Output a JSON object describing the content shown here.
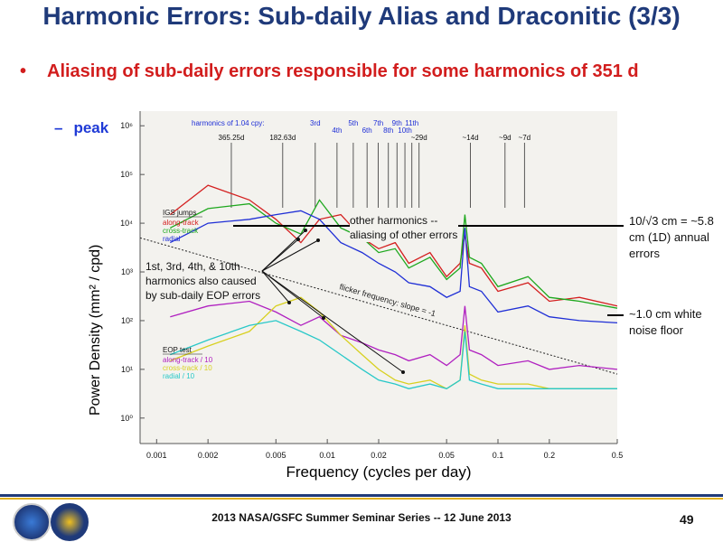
{
  "slide": {
    "title": "Harmonic Errors: Sub-daily Alias and Draconitic (3/3)",
    "bullet": "Aliasing of sub-daily errors responsible for some harmonics of 351 d",
    "sub_bullet": "peak",
    "footer": "2013 NASA/GSFC Summer Seminar Series -- 12 June 2013",
    "page_number": "49",
    "logos": [
      "noaa-logo",
      "ngs-logo"
    ]
  },
  "annotations": {
    "other_harmonics": "other harmonics -- aliasing of other errors",
    "eop_harmonics": "1st, 3rd, 4th, & 10th harmonics also caused by sub-daily EOP errors",
    "annual_errors": "10/√3 cm = ~5.8 cm (1D) annual errors",
    "white_noise": "~1.0 cm white noise floor",
    "flicker": "flicker frequency: slope = -1"
  },
  "chart_data": {
    "type": "line",
    "xlabel": "Frequency (cycles per day)",
    "ylabel": "Power Density  (mm² / cpd)",
    "xscale": "log",
    "yscale": "log",
    "xlim": [
      0.0008,
      0.5
    ],
    "ylim": [
      0.3,
      2000000
    ],
    "xticks": [
      0.001,
      0.002,
      0.005,
      0.01,
      0.02,
      0.05,
      0.1,
      0.2,
      0.5
    ],
    "xticklabels": [
      "0.001",
      "0.002",
      "0.005",
      "0.01",
      "0.02",
      "0.05",
      "0.1",
      "0.2",
      "0.5"
    ],
    "yticks": [
      1,
      10,
      100,
      1000,
      10000,
      100000,
      1000000
    ],
    "yticklabels": [
      "10⁰",
      "10¹",
      "10²",
      "10³",
      "10⁴",
      "10⁵",
      "10⁶"
    ],
    "harmonic_header": "harmonics of 1.04 cpy:",
    "harmonic_labels": [
      {
        "label": "365.25d",
        "x": 0.00274
      },
      {
        "label": "182.63d",
        "x": 0.00548
      },
      {
        "label": "3rd",
        "x": 0.0085
      },
      {
        "label": "4th",
        "x": 0.0114
      },
      {
        "label": "5th",
        "x": 0.0142
      },
      {
        "label": "6th",
        "x": 0.0171
      },
      {
        "label": "7th",
        "x": 0.0199
      },
      {
        "label": "8th",
        "x": 0.0228
      },
      {
        "label": "9th",
        "x": 0.0256
      },
      {
        "label": "10th",
        "x": 0.0285
      },
      {
        "label": "11th",
        "x": 0.0313
      },
      {
        "label": "~29d",
        "x": 0.0345
      },
      {
        "label": "~14d",
        "x": 0.069
      },
      {
        "label": "~9d",
        "x": 0.11
      },
      {
        "label": "~7d",
        "x": 0.143
      }
    ],
    "legend_igs": {
      "title": "IGS jumps",
      "entries": [
        {
          "name": "along-track",
          "color": "#d42020"
        },
        {
          "name": "cross-track",
          "color": "#1ea81e"
        },
        {
          "name": "radial",
          "color": "#1f2fd6"
        }
      ]
    },
    "legend_eop": {
      "title": "EOP test",
      "entries": [
        {
          "name": "along-track / 10",
          "color": "#b020c0"
        },
        {
          "name": "cross-track / 10",
          "color": "#d8d020"
        },
        {
          "name": "radial / 10",
          "color": "#28c8c8"
        }
      ]
    },
    "reference_line": {
      "name": "flicker frequency: slope = -1",
      "x": [
        0.0008,
        0.5
      ],
      "y": [
        5000,
        8
      ]
    },
    "series": [
      {
        "name": "along-track",
        "group": "IGS jumps",
        "color": "#d42020",
        "x": [
          0.0012,
          0.002,
          0.0035,
          0.005,
          0.007,
          0.009,
          0.012,
          0.016,
          0.02,
          0.025,
          0.03,
          0.04,
          0.05,
          0.06,
          0.064,
          0.068,
          0.08,
          0.1,
          0.15,
          0.2,
          0.3,
          0.5
        ],
        "y": [
          15000,
          60000,
          30000,
          12000,
          4000,
          12000,
          15000,
          5000,
          3000,
          4000,
          1500,
          2500,
          800,
          1500,
          6000,
          1500,
          1200,
          400,
          600,
          250,
          300,
          200
        ]
      },
      {
        "name": "cross-track",
        "group": "IGS jumps",
        "color": "#1ea81e",
        "x": [
          0.0012,
          0.002,
          0.0035,
          0.005,
          0.007,
          0.009,
          0.012,
          0.016,
          0.02,
          0.025,
          0.03,
          0.04,
          0.05,
          0.06,
          0.064,
          0.068,
          0.08,
          0.1,
          0.15,
          0.2,
          0.3,
          0.5
        ],
        "y": [
          8000,
          20000,
          25000,
          10000,
          6000,
          30000,
          8000,
          5000,
          2500,
          3000,
          1200,
          2000,
          700,
          1200,
          15000,
          2000,
          1500,
          500,
          800,
          300,
          250,
          180
        ]
      },
      {
        "name": "radial",
        "group": "IGS jumps",
        "color": "#1f2fd6",
        "x": [
          0.0012,
          0.002,
          0.0035,
          0.005,
          0.007,
          0.009,
          0.012,
          0.016,
          0.02,
          0.025,
          0.03,
          0.04,
          0.05,
          0.06,
          0.064,
          0.068,
          0.08,
          0.1,
          0.15,
          0.2,
          0.3,
          0.5
        ],
        "y": [
          4000,
          10000,
          12000,
          15000,
          18000,
          12000,
          4000,
          2500,
          1500,
          1000,
          600,
          500,
          300,
          400,
          8000,
          500,
          400,
          150,
          200,
          120,
          100,
          90
        ]
      },
      {
        "name": "along-track / 10",
        "group": "EOP test",
        "color": "#b020c0",
        "x": [
          0.0012,
          0.002,
          0.0035,
          0.005,
          0.007,
          0.009,
          0.012,
          0.016,
          0.02,
          0.025,
          0.03,
          0.04,
          0.05,
          0.06,
          0.064,
          0.068,
          0.08,
          0.1,
          0.15,
          0.2,
          0.3,
          0.5
        ],
        "y": [
          120,
          200,
          250,
          150,
          80,
          120,
          50,
          35,
          25,
          20,
          15,
          20,
          12,
          20,
          200,
          25,
          20,
          12,
          15,
          10,
          12,
          10
        ]
      },
      {
        "name": "cross-track / 10",
        "group": "EOP test",
        "color": "#d8d020",
        "x": [
          0.0012,
          0.002,
          0.0035,
          0.005,
          0.007,
          0.009,
          0.012,
          0.016,
          0.02,
          0.025,
          0.03,
          0.04,
          0.05,
          0.06,
          0.064,
          0.068,
          0.08,
          0.1,
          0.15,
          0.2,
          0.3,
          0.5
        ],
        "y": [
          15,
          30,
          60,
          200,
          300,
          150,
          50,
          20,
          10,
          6,
          5,
          6,
          4,
          6,
          80,
          8,
          6,
          5,
          5,
          4,
          4,
          4
        ]
      },
      {
        "name": "radial / 10",
        "group": "EOP test",
        "color": "#28c8c8",
        "x": [
          0.0012,
          0.002,
          0.0035,
          0.005,
          0.007,
          0.009,
          0.012,
          0.016,
          0.02,
          0.025,
          0.03,
          0.04,
          0.05,
          0.06,
          0.064,
          0.068,
          0.08,
          0.1,
          0.15,
          0.2,
          0.3,
          0.5
        ],
        "y": [
          20,
          40,
          80,
          100,
          60,
          40,
          20,
          10,
          6,
          5,
          4,
          5,
          4,
          6,
          60,
          6,
          5,
          4,
          4,
          4,
          4,
          4
        ]
      }
    ]
  }
}
